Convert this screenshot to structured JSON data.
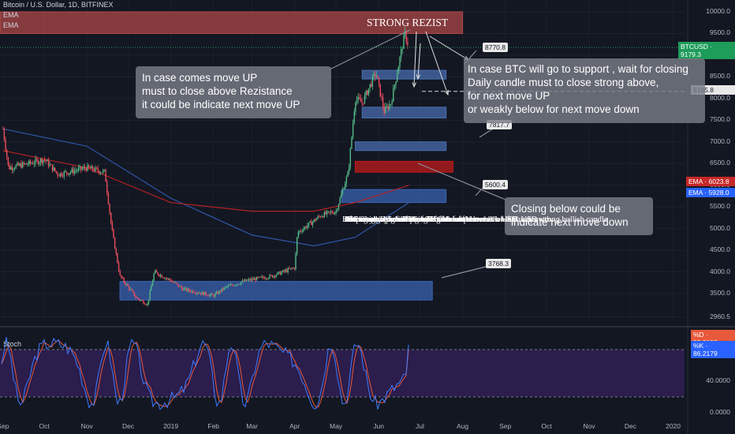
{
  "chart_data": {
    "type": "candlestick",
    "symbol_header": "Bitcoin / U.S. Dollar, 1D, BITFINEX",
    "indicators": [
      "EMA",
      "EMA"
    ],
    "y_ticks": [
      2960.5,
      3500,
      4000,
      4500,
      5000,
      5500,
      6000,
      6500,
      7000,
      7500,
      8000,
      8500,
      9000,
      9500,
      10000
    ],
    "y_tick_labels": [
      "2960.5",
      "3500.0",
      "4000.0",
      "4500.0",
      "5000.0",
      "5500.0",
      "6000.0",
      "6500.0",
      "7000.0",
      "7500.0",
      "8000.0",
      "8500.0",
      "9000.0",
      "9500.0",
      "10000.0"
    ],
    "x_labels": [
      "Sep",
      "Oct",
      "Nov",
      "Dec",
      "2019",
      "Feb",
      "Mar",
      "Apr",
      "May",
      "Jun",
      "Jul",
      "Aug",
      "Sep",
      "Oct",
      "Nov",
      "Dec",
      "2020"
    ],
    "price_path": [
      [
        "2018-09-01",
        7300
      ],
      [
        "2018-09-05",
        6400
      ],
      [
        "2018-09-20",
        6500
      ],
      [
        "2018-10-01",
        6600
      ],
      [
        "2018-10-11",
        6250
      ],
      [
        "2018-11-01",
        6400
      ],
      [
        "2018-11-14",
        6300
      ],
      [
        "2018-11-19",
        5000
      ],
      [
        "2018-11-25",
        3900
      ],
      [
        "2018-12-07",
        3400
      ],
      [
        "2018-12-15",
        3250
      ],
      [
        "2018-12-20",
        4000
      ],
      [
        "2019-01-01",
        3800
      ],
      [
        "2019-01-10",
        3600
      ],
      [
        "2019-02-01",
        3450
      ],
      [
        "2019-02-10",
        3650
      ],
      [
        "2019-02-25",
        3800
      ],
      [
        "2019-03-15",
        3900
      ],
      [
        "2019-04-01",
        4100
      ],
      [
        "2019-04-03",
        4900
      ],
      [
        "2019-04-20",
        5300
      ],
      [
        "2019-05-01",
        5400
      ],
      [
        "2019-05-10",
        6300
      ],
      [
        "2019-05-15",
        8000
      ],
      [
        "2019-05-20",
        7900
      ],
      [
        "2019-05-30",
        8600
      ],
      [
        "2019-06-05",
        7700
      ],
      [
        "2019-06-10",
        7900
      ],
      [
        "2019-06-15",
        8700
      ],
      [
        "2019-06-20",
        9500
      ],
      [
        "2019-06-23",
        9179
      ]
    ],
    "ema_long": [
      [
        "2018-09-01",
        7300
      ],
      [
        "2018-11-01",
        6900
      ],
      [
        "2019-01-01",
        5700
      ],
      [
        "2019-03-01",
        4850
      ],
      [
        "2019-04-15",
        4600
      ],
      [
        "2019-05-15",
        4800
      ],
      [
        "2019-06-23",
        5600
      ]
    ],
    "ema_short": [
      [
        "2018-09-01",
        6800
      ],
      [
        "2018-11-01",
        6400
      ],
      [
        "2019-01-01",
        5600
      ],
      [
        "2019-03-01",
        5400
      ],
      [
        "2019-04-15",
        5400
      ],
      [
        "2019-05-15",
        5600
      ],
      [
        "2019-06-23",
        6000
      ]
    ],
    "zones": [
      {
        "label": "resistance",
        "from_date": "2018-08-30",
        "to_date": "2019-08-01",
        "low": 9500,
        "high": 10000,
        "color": "#b2494a"
      },
      {
        "label": "",
        "from_date": "2019-05-20",
        "to_date": "2019-07-20",
        "low": 8450,
        "high": 8650,
        "color": "#4a6fb3"
      },
      {
        "label": "",
        "from_date": "2019-05-20",
        "to_date": "2019-07-20",
        "low": 7550,
        "high": 7800,
        "color": "#4a6fb3"
      },
      {
        "label": "",
        "from_date": "2019-05-15",
        "to_date": "2019-07-20",
        "low": 6800,
        "high": 7000,
        "color": "#4a6fb3"
      },
      {
        "label": "",
        "from_date": "2019-05-15",
        "to_date": "2019-07-25",
        "low": 6300,
        "high": 6550,
        "color": "#c41a1a"
      },
      {
        "label": "",
        "from_date": "2019-05-05",
        "to_date": "2019-07-20",
        "low": 5600,
        "high": 5900,
        "color": "#3a65b5"
      },
      {
        "label": "support",
        "from_date": "2018-11-25",
        "to_date": "2019-07-10",
        "low": 3350,
        "high": 3780,
        "color": "#3a65b5"
      }
    ],
    "price_tags": [
      "8770.8",
      "7817.7",
      "5600.4",
      "3768.3"
    ],
    "last_price": {
      "label": "BTCUSD",
      "value": "9179.3",
      "color": "#1e9c5a"
    },
    "level_tag": {
      "value": "8165.8"
    },
    "ema_tags": [
      {
        "label": "EMA",
        "value": "6023.8",
        "color": "#c62828"
      },
      {
        "label": "EMA",
        "value": "5928.0",
        "color": "#2962ff"
      }
    ],
    "stoch": {
      "name": "Stoch",
      "y_ticks": [
        "0.0000",
        "40.0000",
        "80.0000"
      ],
      "tags": [
        {
          "label": "%D",
          "value": "80.3193",
          "color": "#e8593b"
        },
        {
          "label": "%K",
          "value": "86.2179",
          "color": "#2962ff"
        }
      ],
      "overbought": 80,
      "oversold": 20
    }
  },
  "annotations": {
    "strong_rezist": "STRONG REZIST",
    "left_note": [
      "In case comes move UP",
      "must to close above Rezistance",
      "it could be indicate next move UP"
    ],
    "right_note": [
      "In case BTC will go to support , wait for closing",
      "Daily candle must to close strong above,",
      "for next move UP",
      "or weakly below for next move down"
    ],
    "down_note": [
      "Closing below could be",
      "indicate next move down"
    ],
    "body_text": [
      "BTC hit the edge of the resist where there was a weak sales",
      "  response. This fact points to the fact that",
      "  merchants are waiting for a value of about 10k USD",
      " where we expect a stronger sales response.",
      "  This does not mean that BTC turns the trend.",
      " It is very important to wait for this level",
      " and signal which BTC will offer us.",
      "  If the signal is bullish will occur after correction for re-growth.",
      "  Such a signal will be closing above the value of 10K USD strong bullish candle"
    ]
  }
}
